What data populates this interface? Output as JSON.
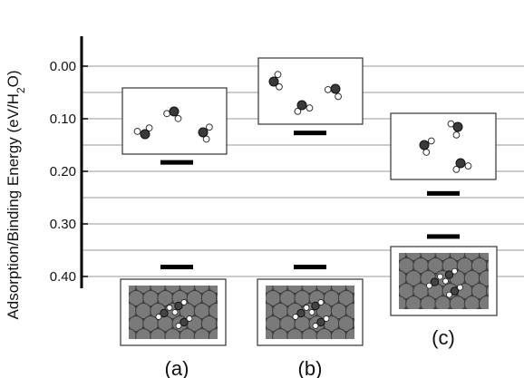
{
  "chart_data": {
    "type": "scatter",
    "ylabel_parts": [
      "Adsorption/Binding Energy (eV/H",
      "2",
      "O)"
    ],
    "ytick_labels": [
      "0.00",
      "0.10",
      "0.20",
      "0.30",
      "0.40"
    ],
    "ytick_values": [
      0.0,
      0.1,
      0.2,
      0.3,
      0.4
    ],
    "ylim": [
      0.0,
      0.425
    ],
    "y_inverted": true,
    "grid": true,
    "grid_step": 0.05,
    "categories": [
      "(a)",
      "(b)",
      "(c)"
    ],
    "series": [
      {
        "values": [
          0.183,
          0.127,
          0.242
        ]
      },
      {
        "values": [
          0.382,
          0.382,
          0.324
        ]
      }
    ],
    "insets": [
      {
        "category": "(a)",
        "kind": "gas-phase water trimer",
        "level": 0.183
      },
      {
        "category": "(b)",
        "kind": "gas-phase water trimer",
        "level": 0.127
      },
      {
        "category": "(c)",
        "kind": "gas-phase water trimer",
        "level": 0.242
      },
      {
        "category": "(a)",
        "kind": "adsorbed trimer on metal surface",
        "level": 0.382
      },
      {
        "category": "(b)",
        "kind": "adsorbed trimer on metal surface",
        "level": 0.382
      },
      {
        "category": "(c)",
        "kind": "adsorbed trimer on metal surface",
        "level": 0.324
      }
    ],
    "colors": {
      "marker": "#000000",
      "grid": "#777777",
      "axis": "#000000",
      "atom_O": "#3a3a3a",
      "atom_H": "#ffffff",
      "metal": "#7a7a7a"
    }
  }
}
